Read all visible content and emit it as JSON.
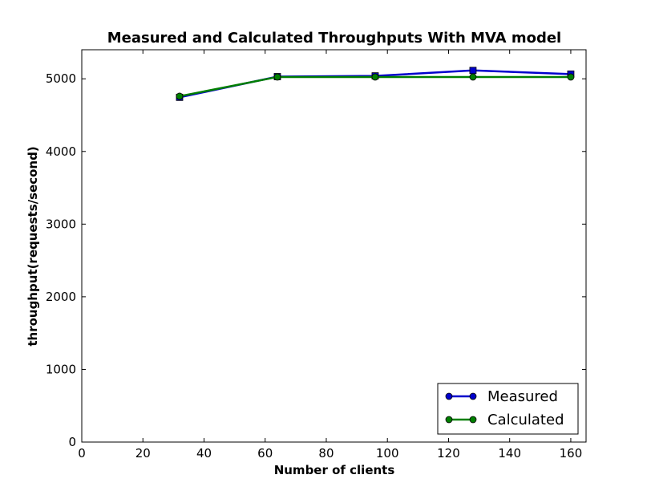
{
  "chart_data": {
    "type": "line",
    "title": "Measured and Calculated Throughputs With MVA model",
    "xlabel": "Number of clients",
    "ylabel": "throughput(requests/second)",
    "xlim": [
      0,
      165
    ],
    "ylim": [
      0,
      5400
    ],
    "xticks": [
      0,
      20,
      40,
      60,
      80,
      100,
      120,
      140,
      160
    ],
    "yticks": [
      0,
      1000,
      2000,
      3000,
      4000,
      5000
    ],
    "grid": false,
    "legend_position": "lower-right",
    "x": [
      32,
      64,
      96,
      128,
      160
    ],
    "series": [
      {
        "name": "Measured",
        "color": "#0000cc",
        "marker": "square",
        "values": [
          4745,
          5030,
          5040,
          5115,
          5065
        ]
      },
      {
        "name": "Calculated",
        "color": "#007f00",
        "marker": "circle",
        "values": [
          4760,
          5025,
          5025,
          5025,
          5025
        ]
      }
    ]
  }
}
